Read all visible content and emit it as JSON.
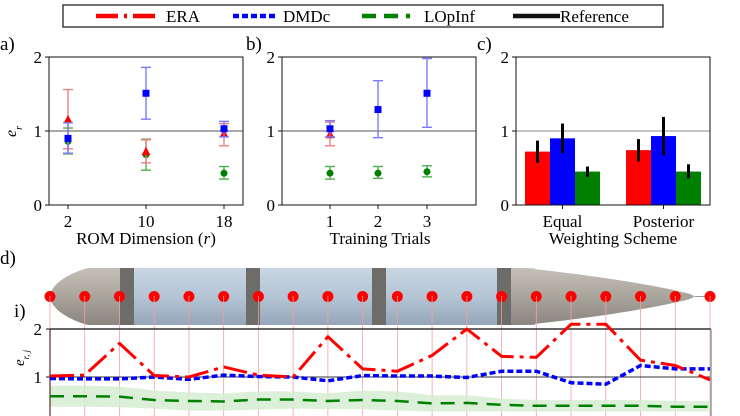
{
  "legend": {
    "entries": [
      {
        "name": "ERA",
        "color": "#ff0000",
        "style": "dashdot"
      },
      {
        "name": "DMDc",
        "color": "#0000ff",
        "style": "dotted"
      },
      {
        "name": "LOpInf",
        "color": "#008000",
        "style": "dashed"
      },
      {
        "name": "Reference",
        "color": "#111111",
        "style": "solid"
      }
    ]
  },
  "panel_labels": {
    "a": "a)",
    "b": "b)",
    "c": "c)",
    "d": "d)",
    "di": "i)"
  },
  "chart_data": [
    {
      "id": "a",
      "type": "scatter",
      "title": "",
      "xlabel": "ROM Dimension (r)",
      "xlabel_plain": "ROM Dimension (",
      "xlabel_var": "r",
      "xlabel_close": ")",
      "ylabel": "e_r",
      "categories": [
        "2",
        "10",
        "18"
      ],
      "ylim": [
        0,
        2
      ],
      "yticks": [
        "0",
        "1",
        "2"
      ],
      "reference": 1,
      "series": [
        {
          "name": "ERA",
          "marker": "triangle",
          "values": [
            1.15,
            0.72,
            0.96
          ],
          "lower": [
            0.76,
            0.57,
            0.8
          ],
          "upper": [
            1.56,
            0.88,
            1.1
          ]
        },
        {
          "name": "DMDc",
          "marker": "square",
          "values": [
            0.9,
            1.51,
            1.03
          ],
          "lower": [
            0.7,
            1.16,
            0.92
          ],
          "upper": [
            1.11,
            1.86,
            1.13
          ]
        },
        {
          "name": "LOpInf",
          "marker": "circle",
          "values": [
            0.86,
            0.68,
            0.43
          ],
          "lower": [
            0.69,
            0.47,
            0.35
          ],
          "upper": [
            1.04,
            0.89,
            0.52
          ]
        }
      ]
    },
    {
      "id": "b",
      "type": "scatter",
      "xlabel": "Training Trials",
      "ylabel": "",
      "categories": [
        "1",
        "2",
        "3"
      ],
      "ylim": [
        0,
        2
      ],
      "yticks": [
        "0",
        "1",
        "2"
      ],
      "reference": 1,
      "series": [
        {
          "name": "ERA",
          "marker": "triangle",
          "values": [
            0.95,
            null,
            null
          ],
          "lower": [
            0.8,
            null,
            null
          ],
          "upper": [
            1.12,
            null,
            null
          ]
        },
        {
          "name": "DMDc",
          "marker": "square",
          "values": [
            1.03,
            1.29,
            1.51
          ],
          "lower": [
            0.92,
            0.91,
            1.05
          ],
          "upper": [
            1.14,
            1.68,
            1.98
          ]
        },
        {
          "name": "LOpInf",
          "marker": "circle",
          "values": [
            0.43,
            0.43,
            0.45
          ],
          "lower": [
            0.35,
            0.36,
            0.38
          ],
          "upper": [
            0.52,
            0.52,
            0.53
          ]
        }
      ]
    },
    {
      "id": "c",
      "type": "bar",
      "xlabel": "Weighting Scheme",
      "ylabel": "",
      "categories": [
        "Equal",
        "Posterior"
      ],
      "ylim": [
        0,
        2
      ],
      "yticks": [
        "0",
        "1",
        "2"
      ],
      "reference": 1,
      "series": [
        {
          "name": "ERA",
          "values": [
            0.72,
            0.74
          ],
          "lower": [
            0.57,
            0.59
          ],
          "upper": [
            0.87,
            0.89
          ]
        },
        {
          "name": "DMDc",
          "values": [
            0.9,
            0.93
          ],
          "lower": [
            0.7,
            0.67
          ],
          "upper": [
            1.1,
            1.19
          ]
        },
        {
          "name": "LOpInf",
          "values": [
            0.45,
            0.45
          ],
          "lower": [
            0.38,
            0.36
          ],
          "upper": [
            0.52,
            0.55
          ]
        }
      ]
    },
    {
      "id": "d-i",
      "type": "line",
      "xlabel": "",
      "ylabel": "e_{r,j}",
      "x": [
        1,
        2,
        3,
        4,
        5,
        6,
        7,
        8,
        9,
        10,
        11,
        12,
        13,
        14,
        15,
        16,
        17,
        18,
        19,
        20
      ],
      "ylim": [
        0,
        2
      ],
      "yticks": [
        "1",
        "2"
      ],
      "reference": 1,
      "series": [
        {
          "name": "ERA",
          "values": [
            1.02,
            1.04,
            1.7,
            1.03,
            1.0,
            1.21,
            1.04,
            1.0,
            1.84,
            1.17,
            1.12,
            1.45,
            2.0,
            1.43,
            1.41,
            2.1,
            2.1,
            1.35,
            1.24,
            0.94
          ]
        },
        {
          "name": "DMDc",
          "values": [
            0.97,
            0.96,
            0.96,
            1.0,
            0.95,
            1.04,
            1.01,
            1.0,
            0.92,
            1.03,
            1.02,
            1.02,
            0.99,
            1.12,
            1.12,
            0.88,
            0.85,
            1.24,
            1.17,
            1.17
          ]
        },
        {
          "name": "LOpInf",
          "values": [
            0.6,
            0.6,
            0.59,
            0.52,
            0.5,
            0.49,
            0.53,
            0.53,
            0.5,
            0.52,
            0.5,
            0.45,
            0.46,
            0.42,
            0.4,
            0.4,
            0.4,
            0.4,
            0.38,
            0.38
          ],
          "band_lower": [
            0.38,
            0.38,
            0.37,
            0.34,
            0.3,
            0.3,
            0.32,
            0.34,
            0.33,
            0.33,
            0.3,
            0.28,
            0.28,
            0.28,
            0.28,
            0.28,
            0.28,
            0.28,
            0.28,
            0.28
          ],
          "band_upper": [
            0.82,
            0.82,
            0.8,
            0.72,
            0.68,
            0.66,
            0.7,
            0.7,
            0.66,
            0.72,
            0.7,
            0.62,
            0.62,
            0.55,
            0.52,
            0.52,
            0.52,
            0.52,
            0.5,
            0.5
          ]
        }
      ]
    }
  ],
  "colors": {
    "ERA": "#ff0000",
    "DMDc": "#0000ff",
    "LOpInf": "#008000",
    "Reference": "#111111",
    "era_light": "#f08080",
    "dmdc_light": "#7a7aff",
    "lopinf_light": "#4fb04f",
    "band": "#d6ecd2",
    "vehicle_body": "#b4c4d4",
    "vehicle_nose": "#a8a49c",
    "vehicle_ring": "#6c6a66"
  },
  "vehicle": {
    "sensor_count": 20
  }
}
